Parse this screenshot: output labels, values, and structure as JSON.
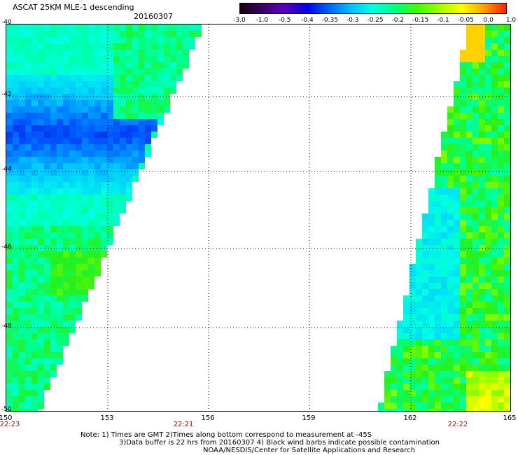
{
  "title": "ASCAT 25KM MLE-1 descending",
  "date": "20160307",
  "colorbar": {
    "labels": [
      "-3.0",
      "-1.0",
      "-0.5",
      "-0.4",
      "-0.35",
      "-0.3",
      "-0.25",
      "-0.2",
      "-0.15",
      "-0.1",
      "-0.05",
      "0.0",
      "1.0"
    ],
    "colors": [
      "#1a0010",
      "#3a0060",
      "#5a00c0",
      "#0000e0",
      "#0060ff",
      "#00c0ff",
      "#00ffe0",
      "#00ff80",
      "#40ff00",
      "#a0ff00",
      "#ffff00",
      "#ffa000",
      "#ff2000"
    ]
  },
  "y_axis": {
    "labels": [
      "-40",
      "-42",
      "-44",
      "-46",
      "-48",
      "-50"
    ]
  },
  "x_axis": {
    "labels": [
      "150",
      "153",
      "156",
      "159",
      "162",
      "165"
    ]
  },
  "times": [
    "22:23",
    "22:21",
    "22:22"
  ],
  "notes": [
    "Note: 1) Times are GMT 2)Times along bottom correspond to measurement at -45S",
    "3)Data buffer is 22 hrs from 20160307 4) Black wind barbs indicate possible contamination",
    "NOAA/NESDIS/Center for Satellite Applications and Research"
  ],
  "colors": {
    "time_label": "#c00000",
    "background": "#ffffff"
  }
}
